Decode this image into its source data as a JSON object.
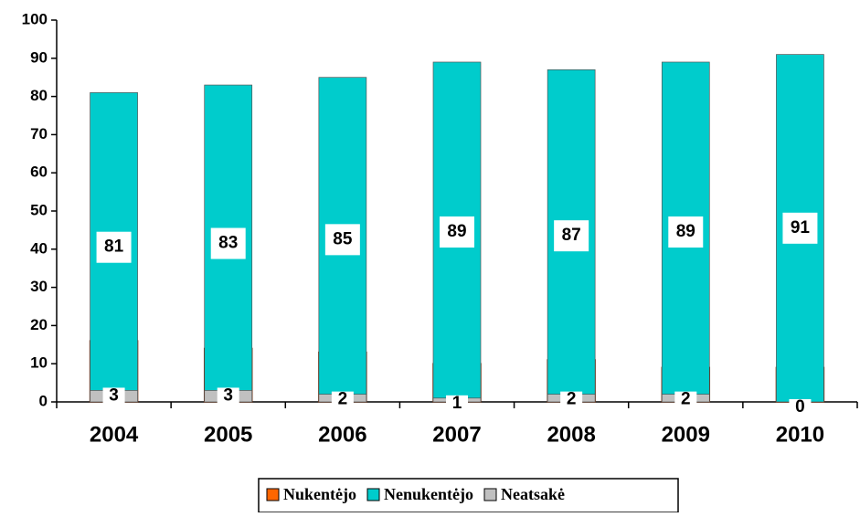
{
  "chart_data": {
    "type": "stacked_bar",
    "categories": [
      "2004",
      "2005",
      "2006",
      "2007",
      "2008",
      "2009",
      "2010"
    ],
    "series": [
      {
        "name": "Nukentėjo",
        "color": "#ff6600",
        "values": [
          16,
          14,
          13,
          10,
          11,
          9,
          9
        ]
      },
      {
        "name": "Nenukentėjo",
        "color": "#00cccc",
        "values": [
          81,
          83,
          85,
          89,
          87,
          89,
          91
        ]
      },
      {
        "name": "Neatsakė",
        "color": "#c0c0c0",
        "values": [
          3,
          3,
          2,
          1,
          2,
          2,
          0
        ]
      }
    ],
    "ylim": [
      0,
      100
    ],
    "yticks": [
      0,
      10,
      20,
      30,
      40,
      50,
      60,
      70,
      80,
      90,
      100
    ],
    "legend": "bottom"
  }
}
